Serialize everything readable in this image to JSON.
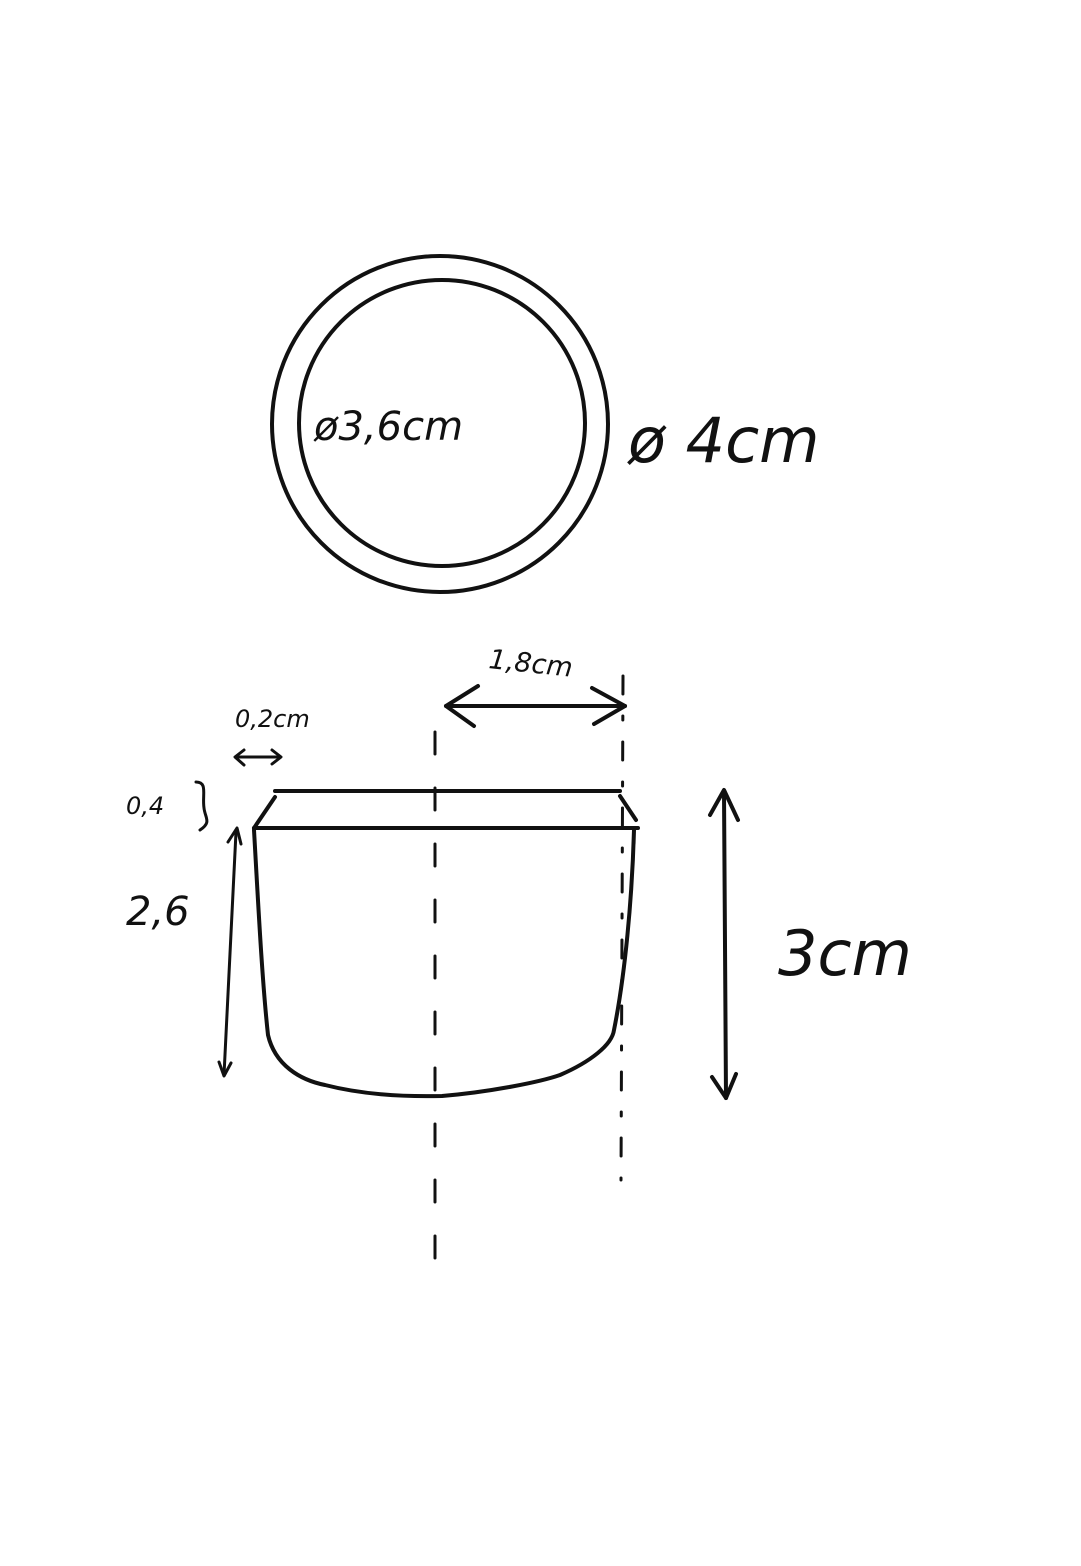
{
  "top_view": {
    "inner_diameter_label": "ø3,6cm",
    "outer_diameter_label": "ø 4cm"
  },
  "side_view": {
    "radius_label": "1,8cm",
    "wall_label": "0,2cm",
    "rim_height_label": "0,4",
    "body_height_label": "2,6",
    "total_height_label": "3cm"
  }
}
